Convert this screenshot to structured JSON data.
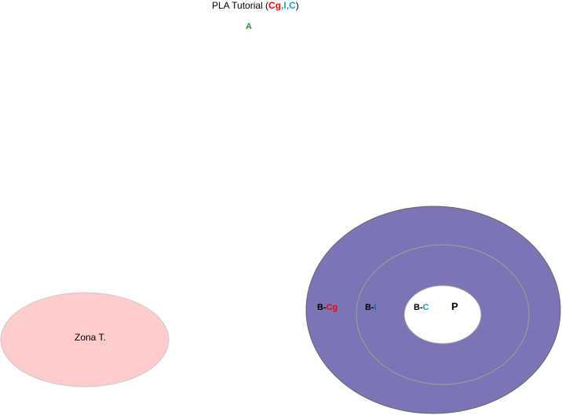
{
  "title": {
    "prefix": "PLA Tutorial (",
    "cg": "Cg",
    "sep1": ",",
    "i": "I",
    "sep2": ",",
    "c": "C",
    "suffix": ")"
  },
  "label_a": "A",
  "zona_label": "Zona T.",
  "rings": {
    "outer_prefix": "B-",
    "outer_suffix": "Cg",
    "middle_prefix": "B-",
    "middle_suffix": "I",
    "inner_prefix": "B-",
    "inner_suffix": "C",
    "center": "P"
  },
  "colors": {
    "ring_fill": "#7b74b5",
    "zona_fill": "#ffcccc",
    "cg": "#ff0000",
    "i_c": "#1aa6b7",
    "a": "#2e8b2e"
  }
}
